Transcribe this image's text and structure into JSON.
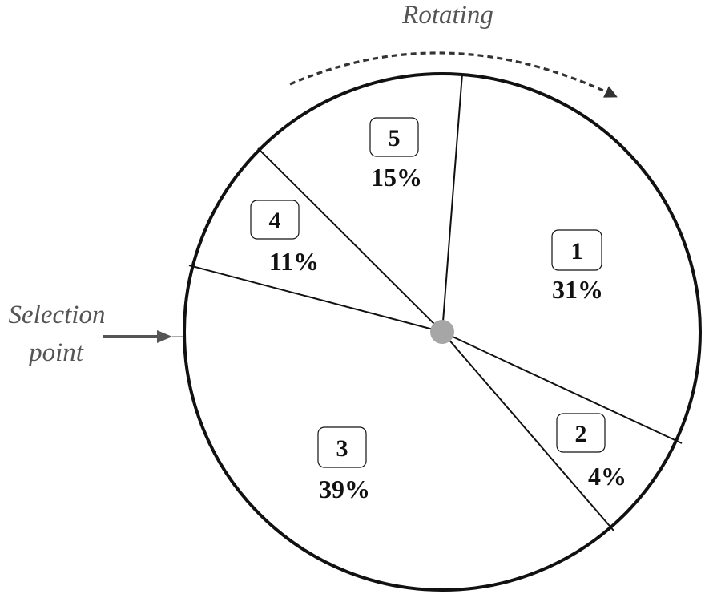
{
  "rotating_label": "Rotating",
  "selection_label": {
    "line1": "Selection",
    "line2": "point"
  },
  "segments": [
    {
      "number": "1",
      "percent": "31%",
      "share": 0.31
    },
    {
      "number": "2",
      "percent": "4%",
      "share": 0.04
    },
    {
      "number": "3",
      "percent": "39%",
      "share": 0.39
    },
    {
      "number": "4",
      "percent": "11%",
      "share": 0.11
    },
    {
      "number": "5",
      "percent": "15%",
      "share": 0.15
    }
  ],
  "colors": {
    "circle_stroke": "#111111",
    "hub": "#a6a6a6",
    "arrow": "#555555",
    "caption": "#555555"
  }
}
